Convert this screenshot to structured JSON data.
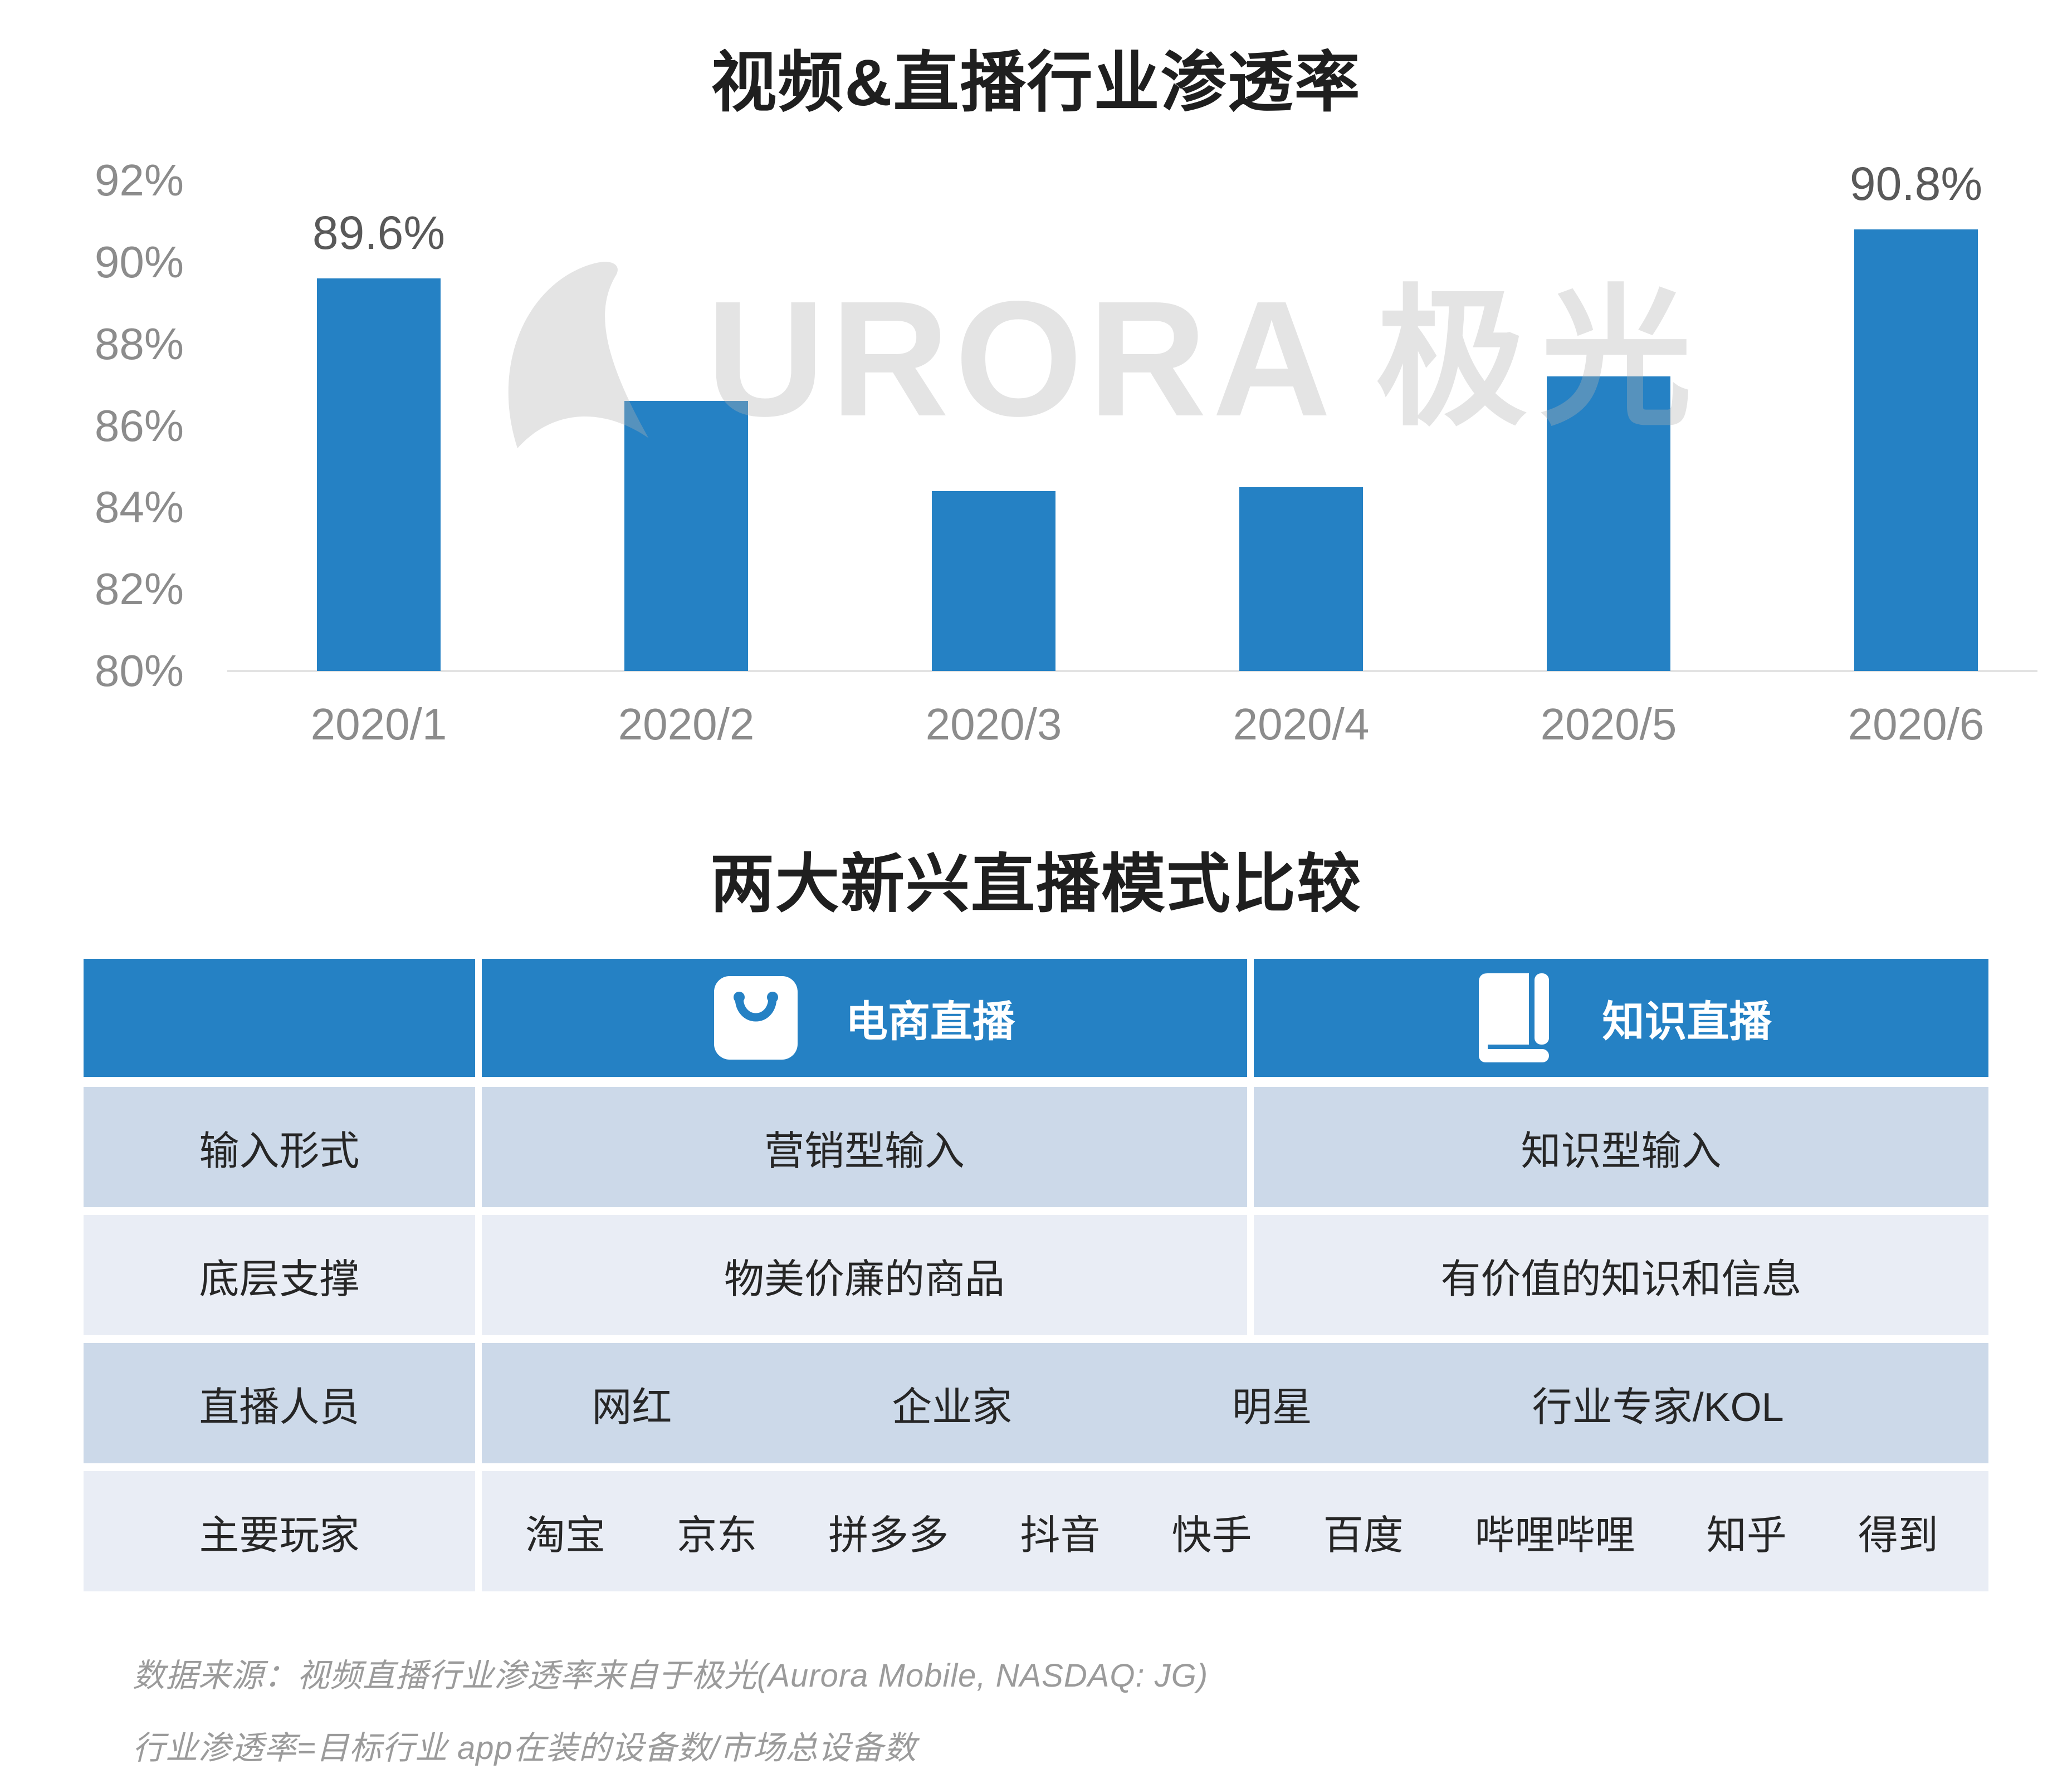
{
  "chart": {
    "title": "视频&直播行业渗透率",
    "watermark": {
      "brand_text": "URORA",
      "brand_cjk": "极光",
      "logo": "aurora-swoosh"
    }
  },
  "chart_data": [
    {
      "type": "bar",
      "title": "视频&直播行业渗透率",
      "categories": [
        "2020/1",
        "2020/2",
        "2020/3",
        "2020/4",
        "2020/5",
        "2020/6"
      ],
      "values": [
        89.6,
        86.6,
        84.4,
        84.5,
        87.2,
        90.8
      ],
      "unit": "%",
      "data_labels": [
        "89.6%",
        null,
        null,
        null,
        null,
        "90.8%"
      ],
      "xlabel": "",
      "ylabel": "",
      "ylim": [
        80,
        92
      ],
      "yticks": [
        "92%",
        "90%",
        "88%",
        "86%",
        "84%",
        "82%",
        "80%"
      ],
      "grid": false,
      "legend": "none",
      "bar_color": "#2581c4",
      "axis_label_color": "#8c8c8c",
      "value_label_color": "#595959"
    },
    {
      "type": "table",
      "title": "两大新兴直播模式比较",
      "columns": [
        "",
        "电商直播",
        "知识直播"
      ],
      "rows": [
        [
          "输入形式",
          "营销型输入",
          "知识型输入"
        ],
        [
          "底层支撑",
          "物美价廉的商品",
          "有价值的知识和信息"
        ],
        [
          "直播人员",
          "网红  企业家  明星  行业专家/KOL"
        ],
        [
          "主要玩家",
          "淘宝  京东  拼多多  抖音  快手  百度  哔哩哔哩  知乎  得到"
        ]
      ]
    }
  ],
  "table": {
    "title": "两大新兴直播模式比较",
    "header": {
      "col1": "",
      "col2": {
        "icon": "shopping-bag-icon",
        "label": "电商直播"
      },
      "col3": {
        "icon": "book-icon",
        "label": "知识直播"
      }
    },
    "rows": [
      {
        "label": "输入形式",
        "ecommerce": "营销型输入",
        "knowledge": "知识型输入"
      },
      {
        "label": "底层支撑",
        "ecommerce": "物美价廉的商品",
        "knowledge": "有价值的知识和信息"
      },
      {
        "label": "直播人员",
        "items": [
          "网红",
          "企业家",
          "明星",
          "行业专家/KOL"
        ]
      },
      {
        "label": "主要玩家",
        "items": [
          "淘宝",
          "京东",
          "拼多多",
          "抖音",
          "快手",
          "百度",
          "哔哩哔哩",
          "知乎",
          "得到"
        ]
      }
    ],
    "colors": {
      "header_bg": "#2581c4",
      "row_dark": "#ccd9e9",
      "row_light": "#e9edf5",
      "header_text": "#ffffff",
      "cell_text": "#262626"
    }
  },
  "footer": {
    "line1": "数据来源：视频直播行业渗透率来自于极光(Aurora Mobile, NASDAQ: JG)",
    "line2": "行业渗透率=目标行业 app在装的设备数/市场总设备数"
  }
}
